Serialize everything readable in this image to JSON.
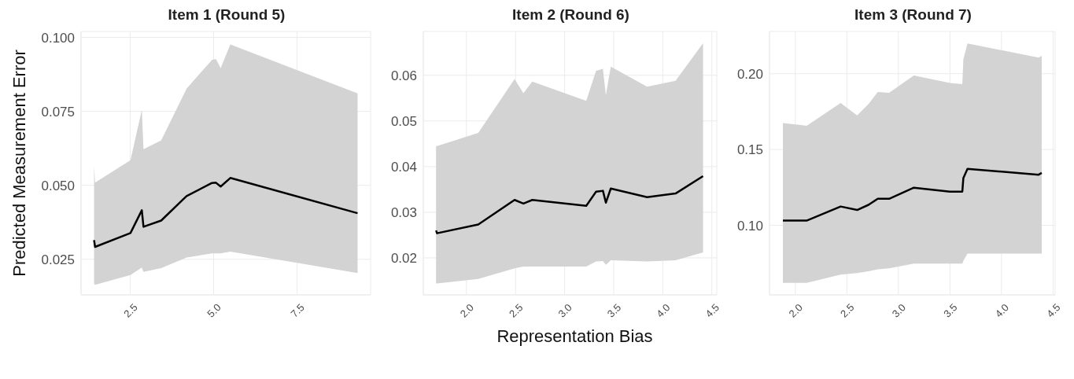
{
  "chart_data": [
    {
      "type": "line",
      "title": "Item 1 (Round 5)",
      "ylabel": "Predicted Measurement Error",
      "grid": true,
      "xlim": [
        1.03,
        9.7
      ],
      "ylim": [
        0.013,
        0.102
      ],
      "xticks": [
        2.5,
        {
          "value": 5,
          "label": "5.0"
        },
        7.5
      ],
      "yticks": [
        0.025,
        {
          "value": 0.05,
          "label": "0.050"
        },
        0.075,
        {
          "value": 0.1,
          "label": "0.100"
        }
      ],
      "x": [
        1.42,
        1.45,
        2.51,
        2.85,
        2.9,
        3.43,
        4.19,
        4.95,
        5.07,
        5.21,
        5.5,
        9.31
      ],
      "series": [
        {
          "color": "#000000",
          "values": [
            0.0315,
            0.0292,
            0.0339,
            0.0416,
            0.036,
            0.0381,
            0.0464,
            0.0508,
            0.0509,
            0.0496,
            0.0525,
            0.0406
          ],
          "lower": [
            0.0168,
            0.0164,
            0.0197,
            0.0222,
            0.0208,
            0.022,
            0.0256,
            0.027,
            0.027,
            0.027,
            0.0276,
            0.0204
          ],
          "upper": [
            0.0565,
            0.0509,
            0.0585,
            0.0755,
            0.0622,
            0.0652,
            0.0827,
            0.0924,
            0.0927,
            0.0896,
            0.0976,
            0.0811
          ]
        }
      ]
    },
    {
      "type": "line",
      "title": "Item 2 (Round 6)",
      "xlabel": "Representation Bias",
      "grid": true,
      "xlim": [
        1.56,
        4.55
      ],
      "ylim": [
        0.0119,
        0.0696
      ],
      "xticks": [
        {
          "value": 2,
          "label": "2.0"
        },
        2.5,
        {
          "value": 3,
          "label": "3.0"
        },
        3.5,
        {
          "value": 4,
          "label": "4.0"
        },
        4.5
      ],
      "yticks": [
        0.02,
        0.03,
        0.04,
        0.05,
        0.06
      ],
      "x": [
        1.69,
        1.7,
        2.12,
        2.49,
        2.58,
        2.67,
        3.22,
        3.32,
        3.39,
        3.42,
        3.47,
        3.84,
        4.13,
        4.41
      ],
      "series": [
        {
          "color": "#000000",
          "values": [
            0.026,
            0.0254,
            0.0273,
            0.0327,
            0.0319,
            0.0327,
            0.0314,
            0.0345,
            0.0347,
            0.0321,
            0.0352,
            0.0333,
            0.0341,
            0.0379
          ],
          "lower": [
            0.0144,
            0.0144,
            0.0154,
            0.0177,
            0.0181,
            0.0181,
            0.0181,
            0.0192,
            0.0193,
            0.0185,
            0.0195,
            0.0192,
            0.0195,
            0.0212
          ],
          "upper": [
            0.0445,
            0.0445,
            0.0474,
            0.0592,
            0.0561,
            0.0586,
            0.0544,
            0.061,
            0.0614,
            0.0556,
            0.0619,
            0.0575,
            0.0588,
            0.067
          ]
        }
      ]
    },
    {
      "type": "line",
      "title": "Item 3 (Round 7)",
      "grid": true,
      "xlim": [
        1.75,
        4.52
      ],
      "ylim": [
        0.0541,
        0.2279
      ],
      "xticks": [
        {
          "value": 2,
          "label": "2.0"
        },
        2.5,
        {
          "value": 3,
          "label": "3.0"
        },
        3.5,
        {
          "value": 4,
          "label": "4.0"
        },
        4.5
      ],
      "yticks": [
        {
          "value": 0.1,
          "label": "0.10"
        },
        0.15,
        {
          "value": 0.2,
          "label": "0.20"
        }
      ],
      "x": [
        1.88,
        2.11,
        2.44,
        2.6,
        2.71,
        2.8,
        2.91,
        3.15,
        3.5,
        3.62,
        3.63,
        3.67,
        4.36,
        4.39
      ],
      "series": [
        {
          "color": "#000000",
          "values": [
            0.1031,
            0.1031,
            0.1124,
            0.1101,
            0.1135,
            0.1175,
            0.1175,
            0.1248,
            0.1222,
            0.1222,
            0.1311,
            0.1373,
            0.1334,
            0.1346
          ],
          "lower": [
            0.062,
            0.062,
            0.0674,
            0.0685,
            0.0697,
            0.071,
            0.0716,
            0.0747,
            0.0747,
            0.0747,
            0.0765,
            0.0814,
            0.0814,
            0.0814
          ],
          "upper": [
            0.1675,
            0.1657,
            0.1807,
            0.1725,
            0.18,
            0.188,
            0.1874,
            0.1989,
            0.1939,
            0.1932,
            0.2095,
            0.22,
            0.2107,
            0.2118
          ]
        }
      ]
    }
  ]
}
